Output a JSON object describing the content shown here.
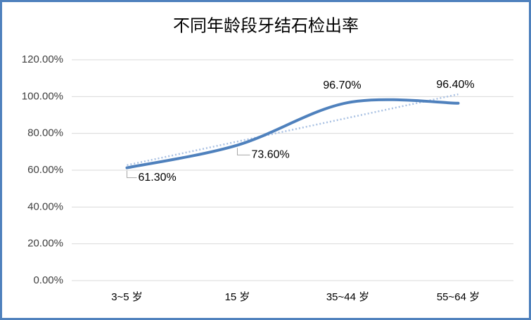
{
  "chart_data": {
    "type": "line",
    "title": "不同年龄段牙结石检出率",
    "categories": [
      "3~5 岁",
      "15 岁",
      "35~44 岁",
      "55~64 岁"
    ],
    "values": [
      61.3,
      73.6,
      96.7,
      96.4
    ],
    "value_labels": [
      "61.30%",
      "73.60%",
      "96.70%",
      "96.40%"
    ],
    "color": "#4f81bd",
    "smooth": true,
    "trendline": "linear",
    "trendline_color": "#a9c1e3",
    "ylim": [
      0,
      120
    ],
    "yticks": [
      {
        "value": 0,
        "label": "0.00%"
      },
      {
        "value": 20,
        "label": "20.00%"
      },
      {
        "value": 40,
        "label": "40.00%"
      },
      {
        "value": 60,
        "label": "60.00%"
      },
      {
        "value": 80,
        "label": "80.00%"
      },
      {
        "value": 100,
        "label": "100.00%"
      },
      {
        "value": 120,
        "label": "120.00%"
      }
    ],
    "grid": true
  }
}
